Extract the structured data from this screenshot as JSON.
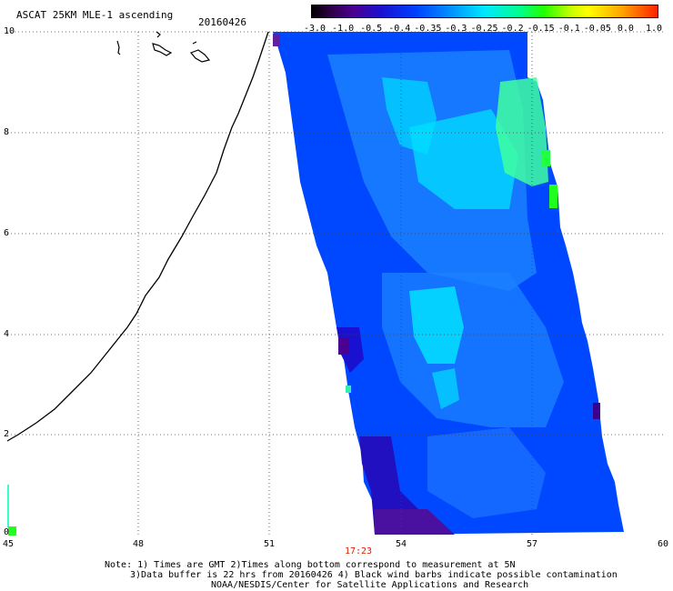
{
  "title": "ASCAT 25KM MLE-1 ascending",
  "date": "20160426",
  "colorbar": {
    "ticks": [
      "-3.0",
      "-1.0",
      "-0.5",
      "-0.4",
      "-0.35",
      "-0.3",
      "-0.25",
      "-0.2",
      "-0.15",
      "-0.1",
      "-0.05",
      "0.0",
      "1.0"
    ],
    "colors": [
      "#000000",
      "#4a0090",
      "#1a10d0",
      "#0040ff",
      "#0090ff",
      "#00e8ff",
      "#00ff90",
      "#20ff00",
      "#c8ff00",
      "#ffff00",
      "#ffa000",
      "#ff2000"
    ]
  },
  "axes": {
    "lat_ticks": [
      "10",
      "8",
      "6",
      "4",
      "2",
      "0"
    ],
    "lon_ticks": [
      "45",
      "48",
      "51",
      "54",
      "57",
      "60"
    ]
  },
  "time_label": "17:23",
  "notes": {
    "line1": "Note: 1) Times are GMT 2)Times along bottom correspond to measurement at 5N",
    "line2": "3)Data buffer is 22 hrs from 20160426 4) Black wind barbs indicate possible contamination",
    "line3": "NOAA/NESDIS/Center for Satellite Applications and Research"
  }
}
